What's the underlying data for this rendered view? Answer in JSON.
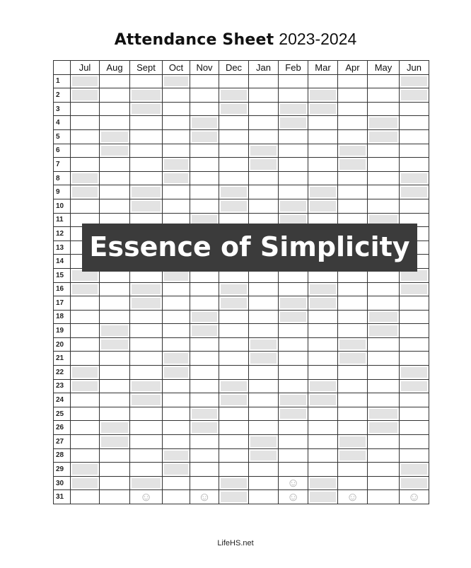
{
  "title": {
    "bold": "Attendance Sheet",
    "year": "2023-2024"
  },
  "months": [
    {
      "label": "Jul",
      "days": 31,
      "shaded": [
        1,
        2,
        8,
        9,
        15,
        16,
        22,
        23,
        29,
        30
      ]
    },
    {
      "label": "Aug",
      "days": 31,
      "shaded": [
        5,
        6,
        12,
        13,
        19,
        20,
        26,
        27
      ]
    },
    {
      "label": "Sept",
      "days": 30,
      "shaded": [
        2,
        3,
        9,
        10,
        16,
        17,
        23,
        24,
        30
      ]
    },
    {
      "label": "Oct",
      "days": 31,
      "shaded": [
        1,
        7,
        8,
        14,
        15,
        21,
        22,
        28,
        29
      ]
    },
    {
      "label": "Nov",
      "days": 30,
      "shaded": [
        4,
        5,
        11,
        12,
        18,
        19,
        25,
        26
      ]
    },
    {
      "label": "Dec",
      "days": 31,
      "shaded": [
        2,
        3,
        9,
        10,
        16,
        17,
        23,
        24,
        30,
        31
      ]
    },
    {
      "label": "Jan",
      "days": 31,
      "shaded": [
        6,
        7,
        13,
        14,
        20,
        21,
        27,
        28
      ]
    },
    {
      "label": "Feb",
      "days": 29,
      "shaded": [
        3,
        4,
        10,
        11,
        17,
        18,
        24,
        25
      ]
    },
    {
      "label": "Mar",
      "days": 31,
      "shaded": [
        2,
        3,
        9,
        10,
        16,
        17,
        23,
        24,
        30,
        31
      ]
    },
    {
      "label": "Apr",
      "days": 30,
      "shaded": [
        6,
        7,
        13,
        14,
        20,
        21,
        27,
        28
      ]
    },
    {
      "label": "May",
      "days": 31,
      "shaded": [
        4,
        5,
        11,
        12,
        18,
        19,
        25,
        26
      ]
    },
    {
      "label": "Jun",
      "days": 30,
      "shaded": [
        1,
        2,
        8,
        9,
        15,
        16,
        22,
        23,
        29,
        30
      ]
    }
  ],
  "shade_color": "#e3e3e3",
  "nonexistent_day_icon": "smiley-icon",
  "banner": "Essence of Simplicity",
  "footer": "LifeHS.net"
}
